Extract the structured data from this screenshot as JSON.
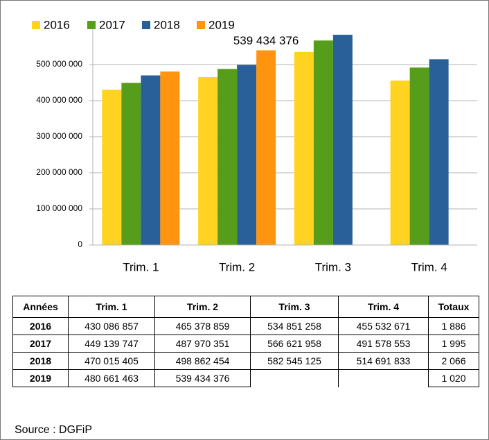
{
  "chart_data": {
    "type": "bar",
    "categories": [
      "Trim. 1",
      "Trim. 2",
      "Trim. 3",
      "Trim. 4"
    ],
    "series": [
      {
        "name": "2016",
        "color": "#ffd320",
        "values": [
          430086857,
          465378859,
          534851258,
          455532671
        ]
      },
      {
        "name": "2017",
        "color": "#579d1c",
        "values": [
          449139747,
          487970351,
          566621958,
          491578553
        ]
      },
      {
        "name": "2018",
        "color": "#2a6099",
        "values": [
          470015405,
          498862454,
          582545125,
          514691833
        ]
      },
      {
        "name": "2019",
        "color": "#ff950e",
        "values": [
          480661463,
          539434376,
          null,
          null
        ],
        "value_labels": [
          null,
          "539 434 376",
          null,
          null
        ]
      }
    ],
    "ylim": [
      0,
      600000000
    ],
    "yticks": [
      {
        "value": 0,
        "label": "0"
      },
      {
        "value": 100000000,
        "label": "100 000 000"
      },
      {
        "value": 200000000,
        "label": "200 000 000"
      },
      {
        "value": 300000000,
        "label": "300 000 000"
      },
      {
        "value": 400000000,
        "label": "400 000 000"
      },
      {
        "value": 500000000,
        "label": "500 000 000"
      }
    ],
    "grid": true,
    "legend": "top"
  },
  "table": {
    "header": [
      "Années",
      "Trim. 1",
      "Trim. 2",
      "Trim. 3",
      "Trim. 4",
      "Totaux"
    ],
    "rows": [
      [
        "2016",
        "430 086 857",
        "465 378 859",
        "534 851 258",
        "455 532 671",
        "1 886"
      ],
      [
        "2017",
        "449 139 747",
        "487 970 351",
        "566 621 958",
        "491 578 553",
        "1 995"
      ],
      [
        "2018",
        "470 015 405",
        "498 862 454",
        "582 545 125",
        "514 691 833",
        "2 066"
      ],
      [
        "2019",
        "480 661 463",
        "539 434 376",
        null,
        null,
        "1 020"
      ]
    ]
  },
  "source": "Source : DGFiP"
}
